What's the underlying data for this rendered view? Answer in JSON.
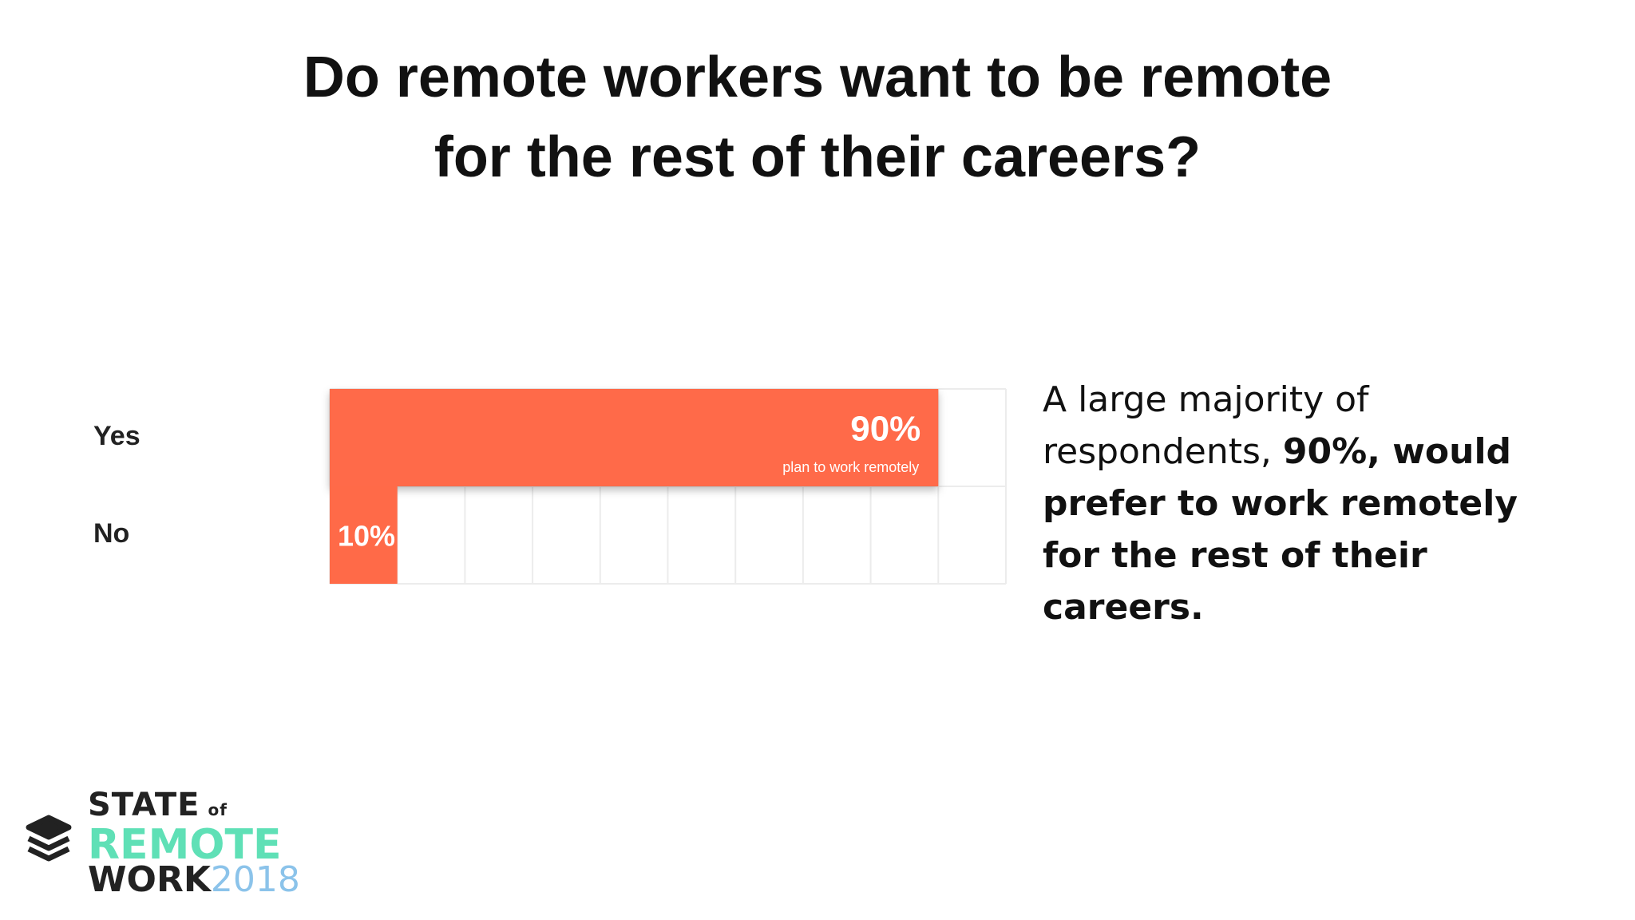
{
  "chart_data": {
    "type": "hbar",
    "title": [
      "Do remote workers want to be remote",
      "for the rest of their careers?"
    ],
    "categories": [
      "Yes",
      "No"
    ],
    "values": [
      90,
      10
    ],
    "value_labels": [
      "90%",
      "10%"
    ],
    "value_sublabels": [
      "plan to work remotely",
      null
    ],
    "color": "#ff6a48",
    "xlim": [
      0,
      100
    ],
    "xticks": [
      0,
      10,
      20,
      30,
      40,
      50,
      60,
      70,
      80,
      90,
      100
    ],
    "grid": true,
    "annotation": [
      "A large majority of respondents, ",
      "90%, would prefer to work remotely for the rest of their careers."
    ]
  },
  "logo": {
    "line1": "STATE",
    "line1_small": "of",
    "line2": "REMOTE",
    "line3": "WORK",
    "year": "2018"
  }
}
